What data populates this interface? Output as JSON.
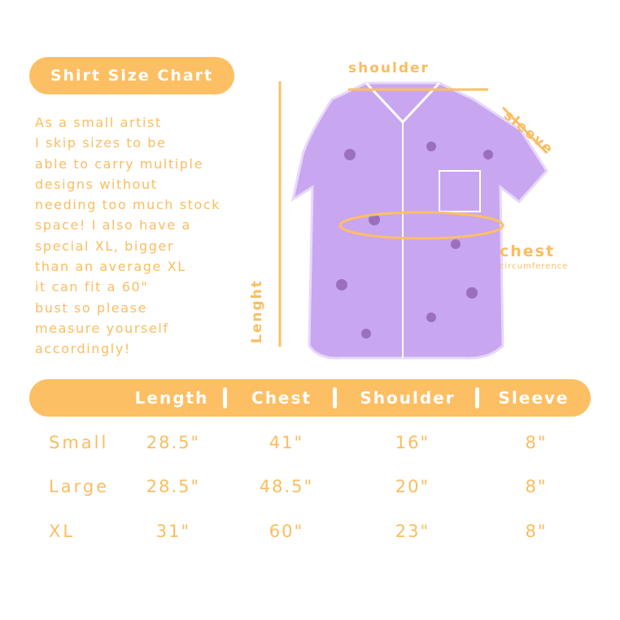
{
  "title": "Shirt Size Chart",
  "blurb": "As a small artist\nI skip sizes to be\nable to carry multiple\ndesigns without\nneeding too much stock\nspace! I also have a\nspecial XL, bigger\nthan an average XL\nit can fit a 60\"\nbust so please\nmeasure yourself\naccordingly!",
  "diagram": {
    "shoulder": "shoulder",
    "sleeve": "sleeve",
    "chest": "chest",
    "chest_sub": "circumference",
    "length": "Lenght"
  },
  "colors": {
    "accent": "#fdbf64",
    "shirt": "#c9a6f0"
  },
  "table": {
    "headers": [
      "Length",
      "Chest",
      "Shoulder",
      "Sleeve"
    ],
    "rows": [
      {
        "size": "Small",
        "values": [
          "28.5\"",
          "41\"",
          "16\"",
          "8\""
        ]
      },
      {
        "size": "Large",
        "values": [
          "28.5\"",
          "48.5\"",
          "20\"",
          "8\""
        ]
      },
      {
        "size": "XL",
        "values": [
          "31\"",
          "60\"",
          "23\"",
          "8\""
        ]
      }
    ]
  }
}
